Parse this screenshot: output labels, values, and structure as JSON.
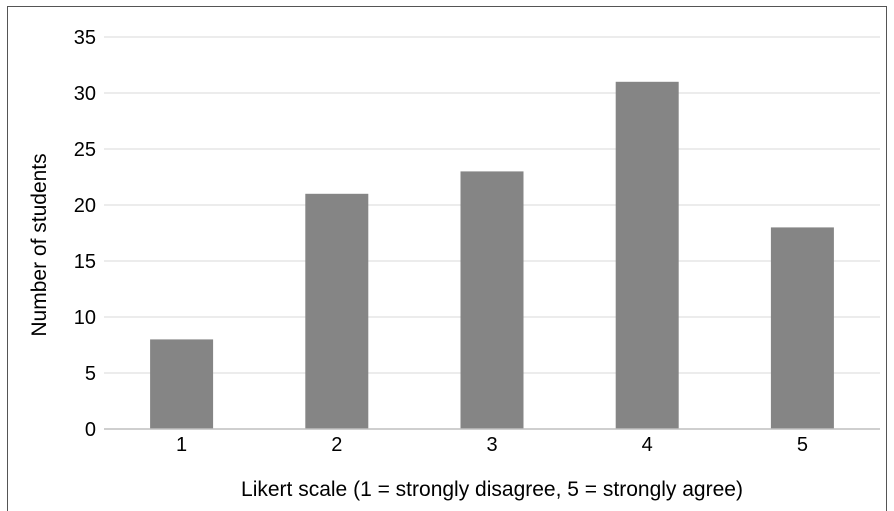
{
  "chart_data": {
    "type": "bar",
    "categories": [
      "1",
      "2",
      "3",
      "4",
      "5"
    ],
    "values": [
      8,
      21,
      23,
      31,
      18
    ],
    "title": "",
    "xlabel": "Likert scale (1 = strongly disagree, 5 = strongly agree)",
    "ylabel": "Number of students",
    "ylim": [
      0,
      35
    ],
    "yticks": [
      0,
      5,
      10,
      15,
      20,
      25,
      30,
      35
    ],
    "grid": true,
    "legend": "none",
    "bar_color": "#858585",
    "grid_color": "#d9d9d9",
    "axis_color": "#bfbfbf"
  }
}
